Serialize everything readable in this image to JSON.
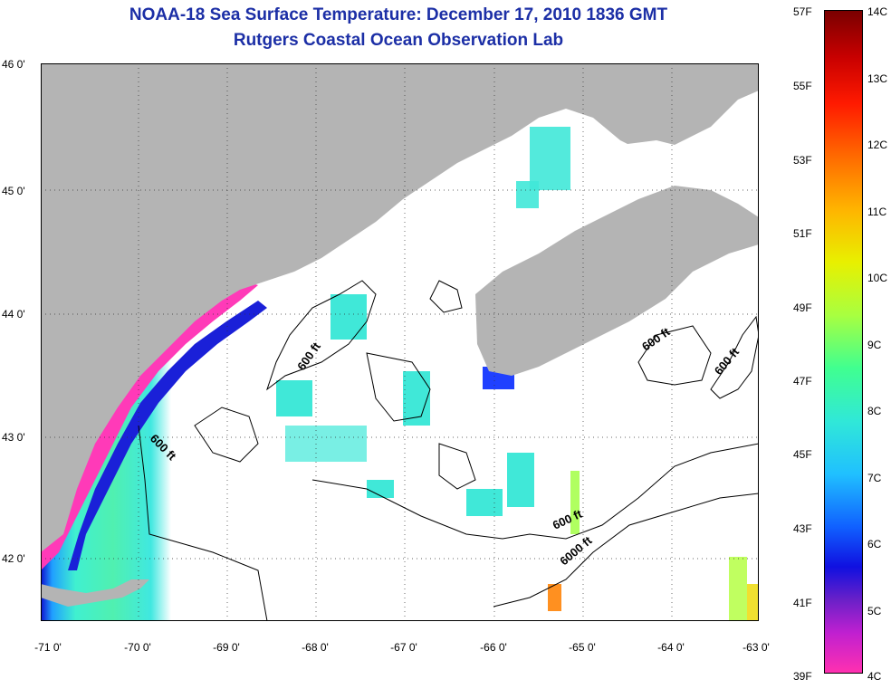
{
  "title": {
    "line1": "NOAA-18 Sea Surface Temperature:  December 17, 2010 1836 GMT",
    "line2": "Rutgers Coastal Ocean Observation Lab"
  },
  "axes": {
    "lat_labels": [
      "46 0'",
      "45 0'",
      "44 0'",
      "43 0'",
      "42 0'"
    ],
    "lon_labels": [
      "-71 0'",
      "-70 0'",
      "-69 0'",
      "-68 0'",
      "-67 0'",
      "-66 0'",
      "-65 0'",
      "-64 0'",
      "-63 0'"
    ]
  },
  "contours": {
    "labels": [
      "600 ft",
      "600 ft",
      "600 ft",
      "600 ft",
      "600 ft",
      "6000 ft"
    ]
  },
  "colorbar": {
    "fahrenheit": [
      "57F",
      "55F",
      "53F",
      "51F",
      "49F",
      "47F",
      "45F",
      "43F",
      "41F",
      "39F"
    ],
    "celsius": [
      "14C",
      "13C",
      "12C",
      "11C",
      "10C",
      "9C",
      "8C",
      "7C",
      "6C",
      "5C",
      "4C"
    ]
  },
  "colors": {
    "title": "#1c2fa6",
    "land": "#b4b4b4",
    "cloud": "#ffffff"
  }
}
